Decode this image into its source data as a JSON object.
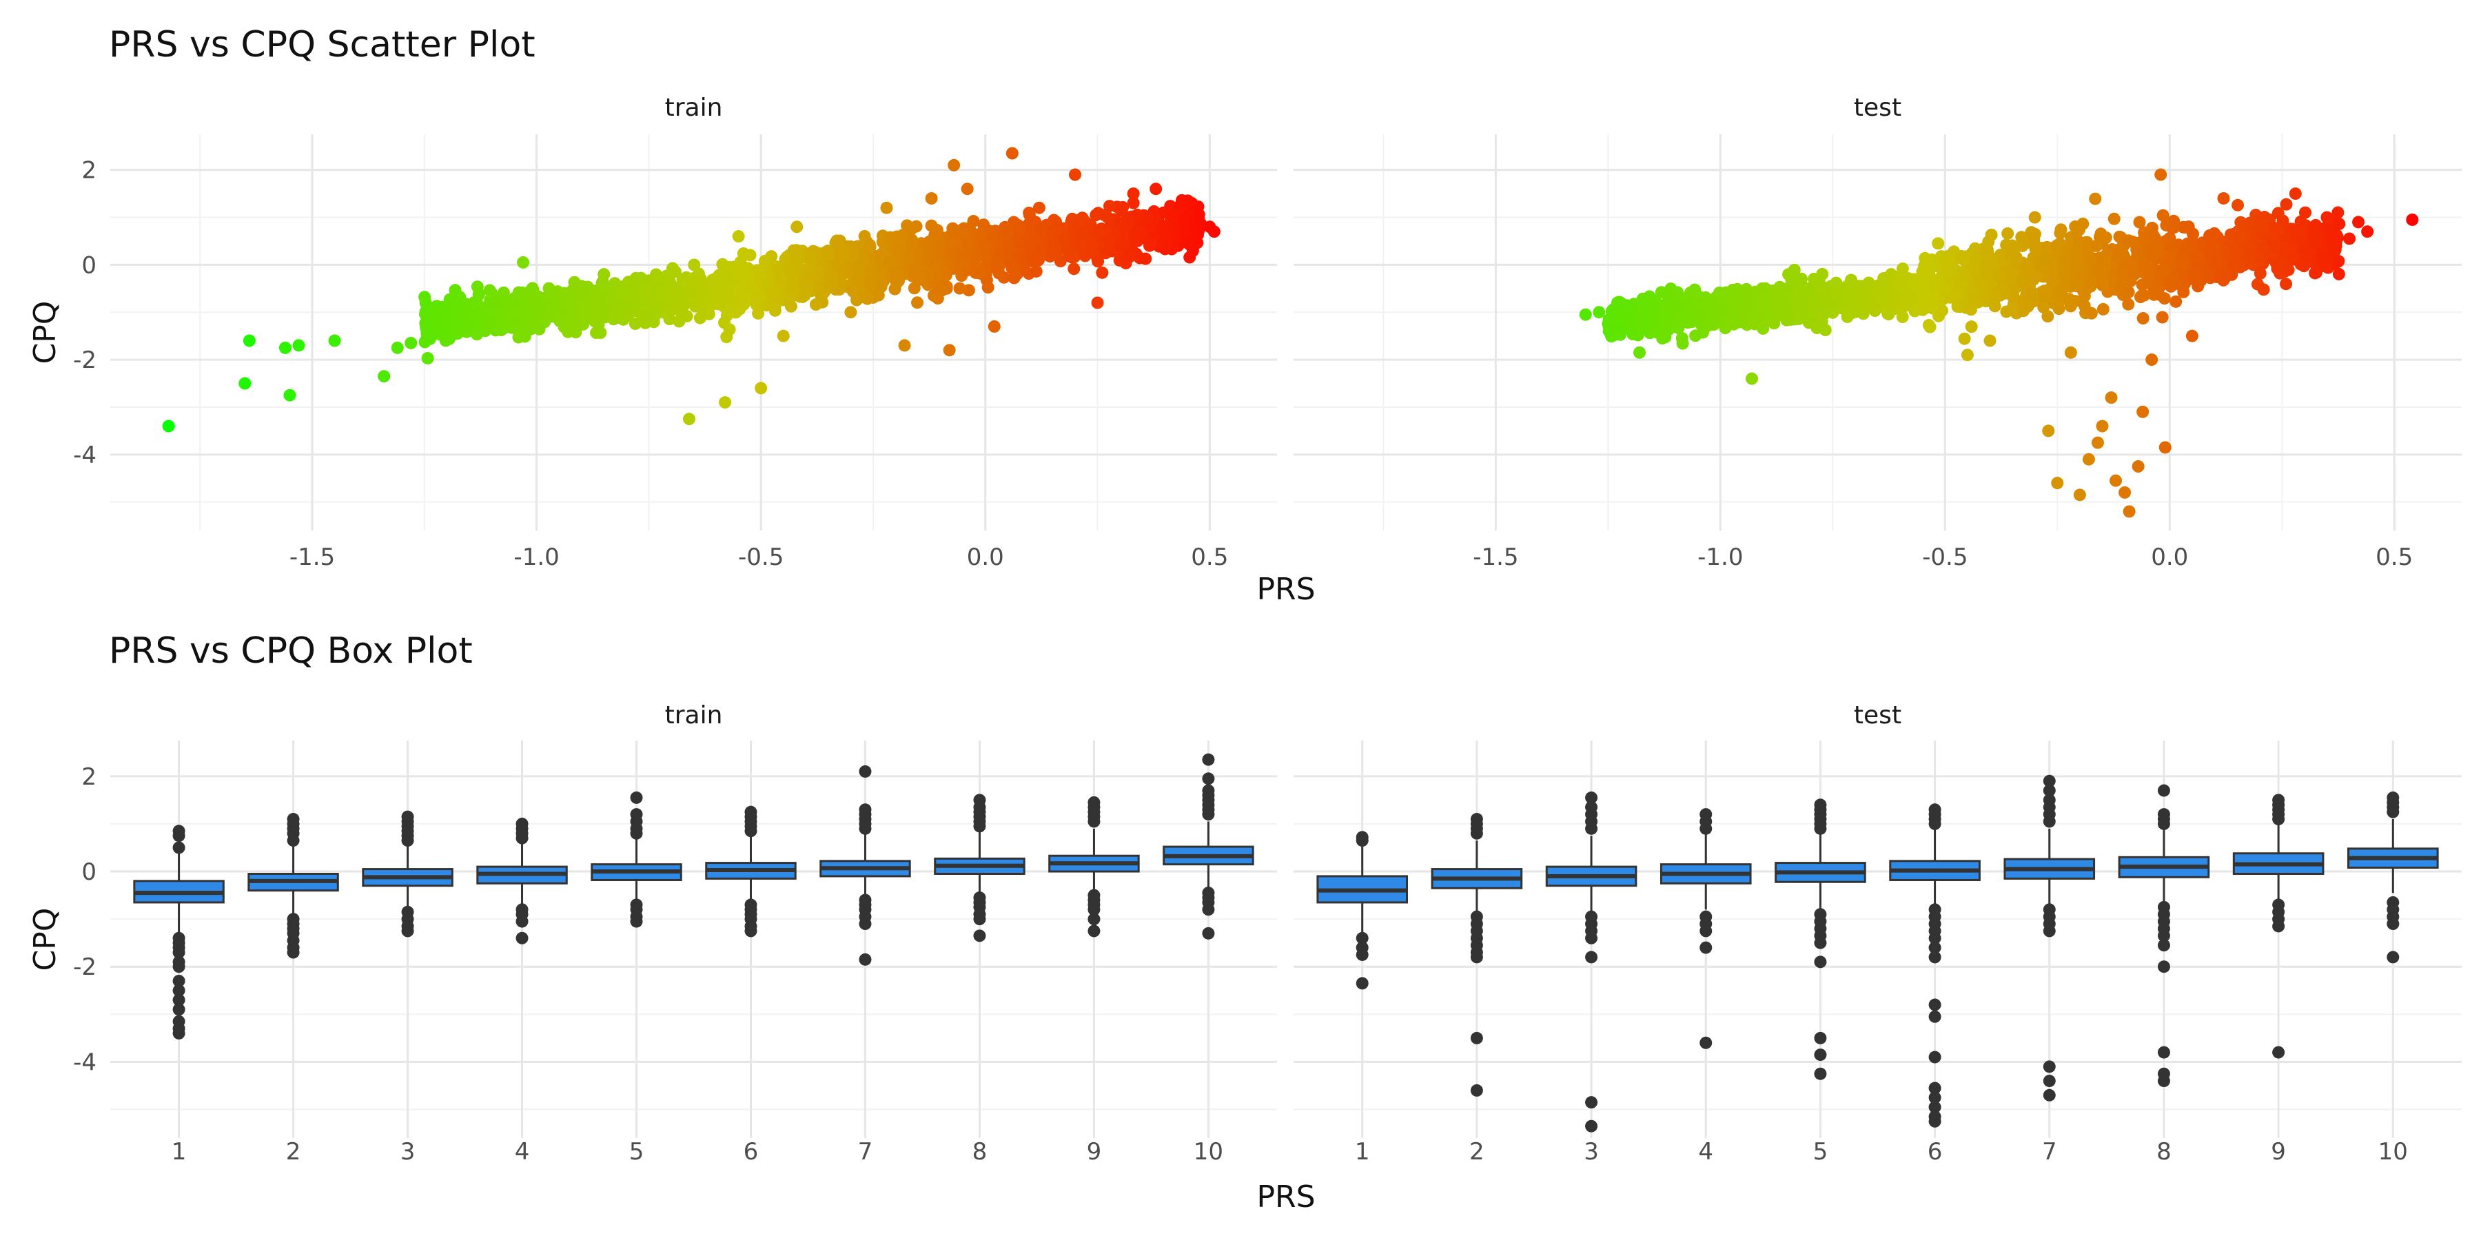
{
  "chart_data": [
    {
      "type": "scatter",
      "title": "PRS vs CPQ Scatter Plot",
      "xlabel": "PRS",
      "ylabel": "CPQ",
      "xlim": [
        -1.95,
        0.65
      ],
      "ylim": [
        -5.6,
        2.75
      ],
      "x_ticks": [
        -1.5,
        -1.0,
        -0.5,
        0.0,
        0.5
      ],
      "x_tick_labels": [
        "-1.5",
        "-1.0",
        "-0.5",
        "0.0",
        "0.5"
      ],
      "y_ticks": [
        2,
        0,
        -2,
        -4
      ],
      "y_tick_labels": [
        "2",
        "0",
        "-2",
        "-4"
      ],
      "grid": true,
      "color_scale": {
        "low": "#00ff00",
        "high": "#ff0000",
        "by": "PRS"
      },
      "facets": [
        {
          "name": "train",
          "points": [
            [
              -1.82,
              -3.4
            ],
            [
              -1.64,
              -1.6
            ],
            [
              -1.65,
              -2.5
            ],
            [
              -1.56,
              -1.75
            ],
            [
              -1.53,
              -1.7
            ],
            [
              -1.55,
              -2.75
            ],
            [
              -1.45,
              -1.6
            ],
            [
              -1.34,
              -2.35
            ],
            [
              -1.31,
              -1.75
            ],
            [
              -1.28,
              -1.65
            ],
            [
              -1.24,
              -1.4
            ],
            [
              -1.22,
              -1.2
            ],
            [
              -1.2,
              -1.0
            ],
            [
              -1.18,
              -0.8
            ],
            [
              -1.15,
              -1.3
            ],
            [
              -1.12,
              -0.9
            ],
            [
              -1.1,
              -0.6
            ],
            [
              -1.05,
              -1.2
            ],
            [
              -1.03,
              0.05
            ],
            [
              -0.98,
              -0.7
            ],
            [
              -0.95,
              -1.15
            ],
            [
              -0.9,
              -0.45
            ],
            [
              -0.85,
              -0.2
            ],
            [
              -0.8,
              -0.9
            ],
            [
              -0.75,
              -0.5
            ],
            [
              -0.66,
              -3.25
            ],
            [
              -0.58,
              -2.9
            ],
            [
              -0.55,
              0.6
            ],
            [
              -0.5,
              -2.6
            ],
            [
              -0.45,
              -1.5
            ],
            [
              -0.42,
              0.8
            ],
            [
              -0.35,
              0.2
            ],
            [
              -0.3,
              -1.0
            ],
            [
              -0.22,
              1.2
            ],
            [
              -0.18,
              -1.7
            ],
            [
              -0.12,
              1.4
            ],
            [
              -0.08,
              -1.8
            ],
            [
              -0.04,
              1.6
            ],
            [
              -0.07,
              2.1
            ],
            [
              0.02,
              -1.3
            ],
            [
              0.06,
              2.35
            ],
            [
              0.12,
              1.2
            ],
            [
              0.2,
              1.9
            ],
            [
              0.25,
              -0.8
            ],
            [
              0.33,
              1.5
            ],
            [
              0.38,
              1.6
            ],
            [
              0.46,
              1.3
            ],
            [
              0.5,
              0.8
            ],
            [
              0.51,
              0.7
            ]
          ],
          "cloud": [
            {
              "x_from": -1.25,
              "x_to": -0.6,
              "y_center_from": -1.25,
              "y_center_to": -0.55,
              "spread": 0.38
            },
            {
              "x_from": -0.6,
              "x_to": 0.1,
              "y_center_from": -0.55,
              "y_center_to": 0.45,
              "spread": 0.55
            },
            {
              "x_from": 0.1,
              "x_to": 0.48,
              "y_center_from": 0.45,
              "y_center_to": 0.75,
              "spread": 0.45
            }
          ]
        },
        {
          "name": "test",
          "points": [
            [
              -1.3,
              -1.05
            ],
            [
              -1.27,
              -1.0
            ],
            [
              -1.2,
              -1.25
            ],
            [
              -1.18,
              -1.85
            ],
            [
              -1.15,
              -0.9
            ],
            [
              -1.1,
              -1.3
            ],
            [
              -1.0,
              -0.7
            ],
            [
              -0.93,
              -2.4
            ],
            [
              -0.9,
              -0.5
            ],
            [
              -0.85,
              -1.15
            ],
            [
              -0.78,
              -0.35
            ],
            [
              -0.7,
              -0.9
            ],
            [
              -0.62,
              -0.2
            ],
            [
              -0.55,
              -0.95
            ],
            [
              -0.5,
              0.1
            ],
            [
              -0.45,
              -1.9
            ],
            [
              -0.4,
              -1.6
            ],
            [
              -0.3,
              1.0
            ],
            [
              -0.27,
              -3.5
            ],
            [
              -0.25,
              -4.6
            ],
            [
              -0.22,
              -1.85
            ],
            [
              -0.2,
              -4.85
            ],
            [
              -0.18,
              -4.1
            ],
            [
              -0.16,
              -3.75
            ],
            [
              -0.15,
              -3.4
            ],
            [
              -0.13,
              -2.8
            ],
            [
              -0.12,
              -4.55
            ],
            [
              -0.1,
              -4.8
            ],
            [
              -0.09,
              -5.2
            ],
            [
              -0.07,
              -4.25
            ],
            [
              -0.06,
              -3.1
            ],
            [
              -0.04,
              -2.0
            ],
            [
              -0.01,
              -3.85
            ],
            [
              -0.02,
              1.9
            ],
            [
              0.05,
              -1.5
            ],
            [
              0.12,
              1.4
            ],
            [
              0.2,
              0.8
            ],
            [
              0.28,
              1.5
            ],
            [
              0.35,
              1.0
            ],
            [
              0.42,
              0.9
            ],
            [
              0.4,
              0.55
            ],
            [
              0.44,
              0.7
            ],
            [
              0.54,
              0.95
            ]
          ],
          "cloud": [
            {
              "x_from": -1.25,
              "x_to": -0.55,
              "y_center_from": -1.15,
              "y_center_to": -0.55,
              "spread": 0.35
            },
            {
              "x_from": -0.55,
              "x_to": 0.05,
              "y_center_from": -0.45,
              "y_center_to": 0.15,
              "spread": 0.7
            },
            {
              "x_from": 0.05,
              "x_to": 0.38,
              "y_center_from": 0.15,
              "y_center_to": 0.5,
              "spread": 0.55
            }
          ]
        }
      ]
    },
    {
      "type": "box",
      "title": "PRS vs CPQ Box Plot",
      "xlabel": "PRS",
      "ylabel": "CPQ",
      "categories": [
        "1",
        "2",
        "3",
        "4",
        "5",
        "6",
        "7",
        "8",
        "9",
        "10"
      ],
      "ylim": [
        -5.6,
        2.75
      ],
      "y_ticks": [
        2,
        0,
        -2,
        -4
      ],
      "y_tick_labels": [
        "2",
        "0",
        "-2",
        "-4"
      ],
      "grid": true,
      "box_color": "#2e8ae6",
      "facets": [
        {
          "name": "train",
          "boxes": [
            {
              "q1": -0.65,
              "median": -0.45,
              "q3": -0.2,
              "lower": -1.3,
              "upper": 0.45
            },
            {
              "q1": -0.4,
              "median": -0.2,
              "q3": -0.05,
              "lower": -0.95,
              "upper": 0.55
            },
            {
              "q1": -0.3,
              "median": -0.12,
              "q3": 0.05,
              "lower": -0.8,
              "upper": 0.6
            },
            {
              "q1": -0.25,
              "median": -0.05,
              "q3": 0.1,
              "lower": -0.75,
              "upper": 0.65
            },
            {
              "q1": -0.18,
              "median": 0.0,
              "q3": 0.15,
              "lower": -0.65,
              "upper": 0.7
            },
            {
              "q1": -0.15,
              "median": 0.03,
              "q3": 0.18,
              "lower": -0.6,
              "upper": 0.75
            },
            {
              "q1": -0.1,
              "median": 0.07,
              "q3": 0.22,
              "lower": -0.55,
              "upper": 0.8
            },
            {
              "q1": -0.05,
              "median": 0.12,
              "q3": 0.27,
              "lower": -0.5,
              "upper": 0.85
            },
            {
              "q1": 0.0,
              "median": 0.17,
              "q3": 0.33,
              "lower": -0.45,
              "upper": 0.9
            },
            {
              "q1": 0.15,
              "median": 0.32,
              "q3": 0.52,
              "lower": -0.35,
              "upper": 1.05
            }
          ],
          "outliers": [
            [
              0.85,
              0.75,
              0.5,
              -1.4,
              -1.5,
              -1.6,
              -1.7,
              -1.9,
              -2.0,
              -2.3,
              -2.5,
              -2.7,
              -2.9,
              -3.15,
              -3.3,
              -3.4
            ],
            [
              1.1,
              1.0,
              0.9,
              0.8,
              0.65,
              -1.0,
              -1.1,
              -1.2,
              -1.3,
              -1.45,
              -1.6,
              -1.7
            ],
            [
              1.15,
              1.05,
              0.95,
              0.85,
              0.75,
              0.65,
              -0.85,
              -1.0,
              -1.15,
              -1.25
            ],
            [
              1.0,
              0.9,
              0.8,
              0.7,
              -0.8,
              -0.9,
              -1.05,
              -1.4
            ],
            [
              1.55,
              1.2,
              1.05,
              0.9,
              0.8,
              -0.7,
              -0.8,
              -0.95,
              -1.05
            ],
            [
              1.25,
              1.15,
              1.05,
              0.95,
              0.85,
              -0.7,
              -0.8,
              -0.9,
              -1.0,
              -1.15,
              -1.25
            ],
            [
              2.1,
              1.3,
              1.2,
              1.1,
              1.0,
              0.9,
              -0.6,
              -0.7,
              -0.8,
              -0.95,
              -1.1,
              -1.85
            ],
            [
              1.5,
              1.35,
              1.25,
              1.15,
              1.05,
              0.95,
              -0.55,
              -0.65,
              -0.75,
              -0.9,
              -1.0,
              -1.35
            ],
            [
              1.45,
              1.35,
              1.25,
              1.15,
              1.05,
              -0.5,
              -0.6,
              -0.7,
              -0.8,
              -1.0,
              -1.25
            ],
            [
              2.35,
              1.95,
              1.7,
              1.6,
              1.5,
              1.4,
              1.3,
              1.2,
              -0.45,
              -0.55,
              -0.65,
              -0.8,
              -1.3
            ]
          ]
        },
        {
          "name": "test",
          "boxes": [
            {
              "q1": -0.65,
              "median": -0.4,
              "q3": -0.1,
              "lower": -1.35,
              "upper": 0.65
            },
            {
              "q1": -0.35,
              "median": -0.15,
              "q3": 0.05,
              "lower": -0.9,
              "upper": 0.65
            },
            {
              "q1": -0.3,
              "median": -0.1,
              "q3": 0.1,
              "lower": -0.85,
              "upper": 0.75
            },
            {
              "q1": -0.25,
              "median": -0.05,
              "q3": 0.15,
              "lower": -0.8,
              "upper": 0.8
            },
            {
              "q1": -0.22,
              "median": -0.02,
              "q3": 0.18,
              "lower": -0.8,
              "upper": 0.85
            },
            {
              "q1": -0.18,
              "median": 0.02,
              "q3": 0.22,
              "lower": -0.75,
              "upper": 0.9
            },
            {
              "q1": -0.15,
              "median": 0.05,
              "q3": 0.26,
              "lower": -0.7,
              "upper": 0.9
            },
            {
              "q1": -0.12,
              "median": 0.1,
              "q3": 0.3,
              "lower": -0.7,
              "upper": 0.95
            },
            {
              "q1": -0.05,
              "median": 0.15,
              "q3": 0.38,
              "lower": -0.6,
              "upper": 1.0
            },
            {
              "q1": 0.08,
              "median": 0.28,
              "q3": 0.48,
              "lower": -0.45,
              "upper": 1.1
            }
          ],
          "outliers": [
            [
              0.72,
              0.65,
              -1.4,
              -1.6,
              -1.75,
              -2.35
            ],
            [
              1.1,
              1.0,
              0.9,
              0.8,
              -0.95,
              -1.1,
              -1.25,
              -1.4,
              -1.55,
              -1.7,
              -1.8,
              -3.5,
              -4.6
            ],
            [
              1.55,
              1.35,
              1.2,
              1.05,
              0.9,
              -0.95,
              -1.1,
              -1.25,
              -1.4,
              -1.8,
              -4.85,
              -5.35
            ],
            [
              1.2,
              1.05,
              0.9,
              -0.95,
              -1.1,
              -1.25,
              -1.6,
              -3.6
            ],
            [
              1.4,
              1.3,
              1.2,
              1.1,
              1.0,
              0.9,
              -0.9,
              -1.05,
              -1.2,
              -1.35,
              -1.5,
              -1.9,
              -3.5,
              -3.85,
              -4.25
            ],
            [
              1.3,
              1.2,
              1.1,
              1.0,
              -0.8,
              -0.95,
              -1.1,
              -1.25,
              -1.4,
              -1.6,
              -1.8,
              -2.8,
              -3.05,
              -3.9,
              -4.55,
              -4.75,
              -4.95,
              -5.15,
              -5.25
            ],
            [
              1.9,
              1.7,
              1.5,
              1.35,
              1.2,
              1.05,
              -0.8,
              -0.95,
              -1.1,
              -1.25,
              -4.1,
              -4.4,
              -4.7
            ],
            [
              1.7,
              1.2,
              1.1,
              1.0,
              -0.75,
              -0.9,
              -1.05,
              -1.2,
              -1.35,
              -1.55,
              -2.0,
              -3.8,
              -4.25,
              -4.4
            ],
            [
              1.5,
              1.4,
              1.3,
              1.2,
              1.1,
              -0.7,
              -0.85,
              -1.0,
              -1.15,
              -3.8
            ],
            [
              1.55,
              1.45,
              1.35,
              1.25,
              -0.65,
              -0.8,
              -0.95,
              -1.1,
              -1.8
            ]
          ]
        }
      ]
    }
  ]
}
